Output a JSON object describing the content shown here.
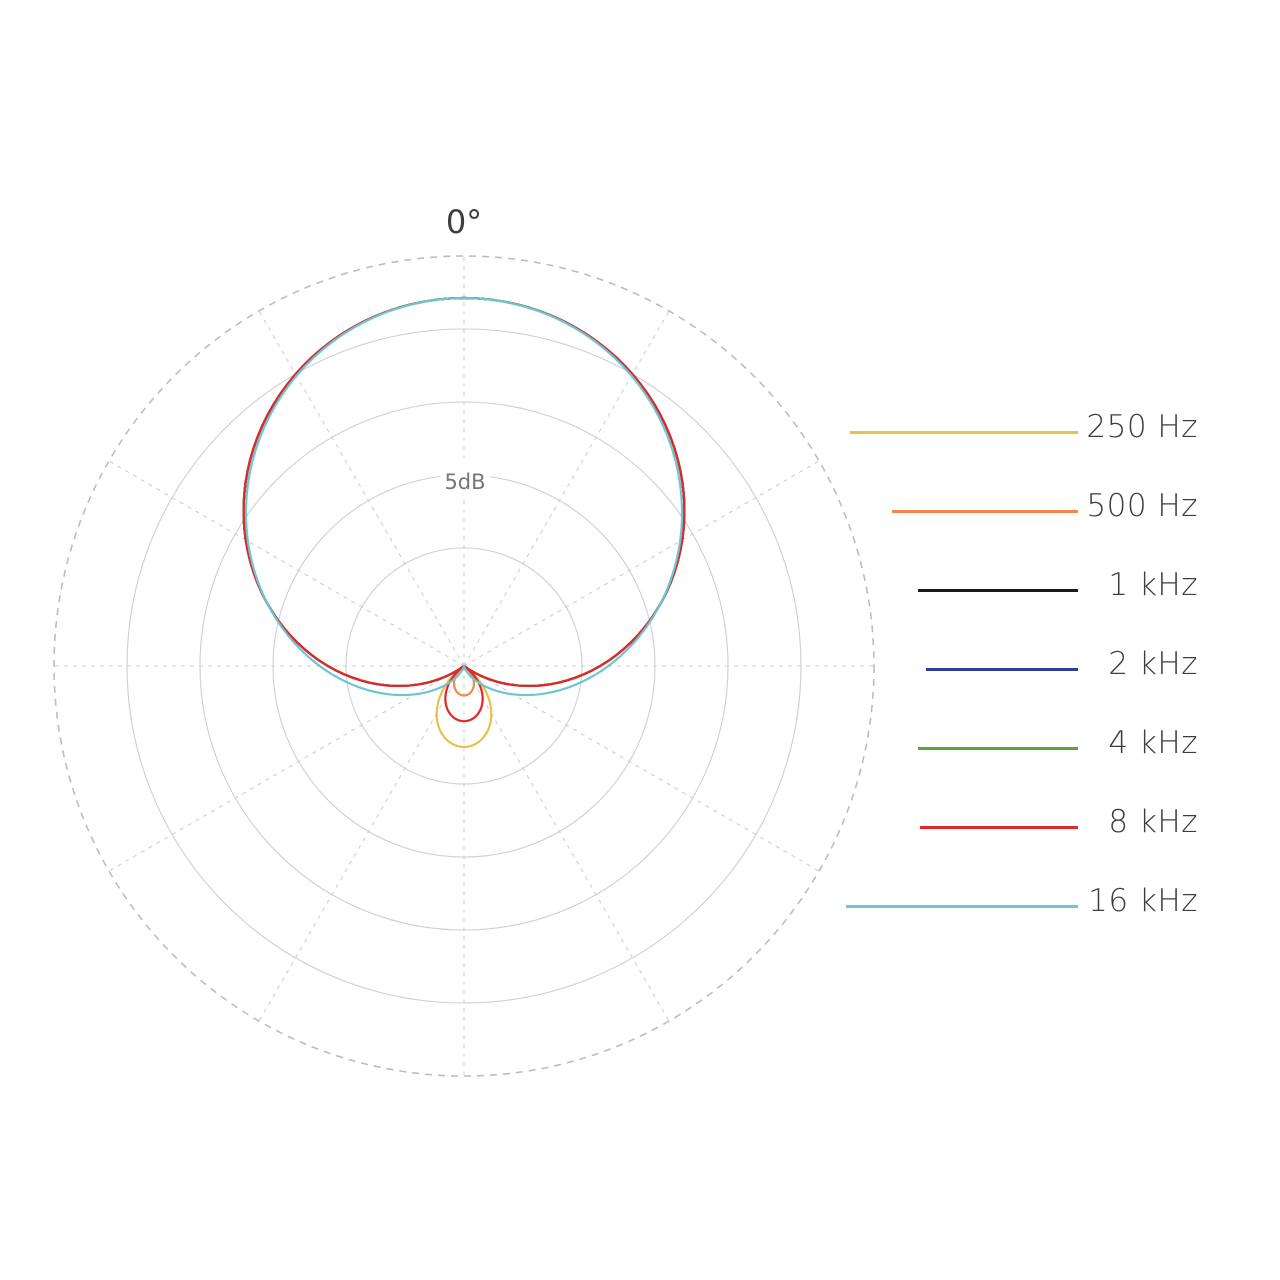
{
  "chart_data": {
    "type": "polar",
    "title": "",
    "angle_labels": [
      {
        "angle": 0,
        "text": "0°"
      }
    ],
    "ring_label": "5dB",
    "ring_step_db": 5,
    "ring_count": 5,
    "grid": true,
    "radial_divisions": 12,
    "legend_position": "right",
    "series": [
      {
        "name": "250 Hz",
        "color": "#e8c14a",
        "pattern": "supercardioid",
        "front": 1.0,
        "rear_lobe": 0.44,
        "null_angle": 150
      },
      {
        "name": "500 Hz",
        "color": "#f0894b",
        "pattern": "supercardioid",
        "front": 1.0,
        "rear_lobe": 0.16,
        "null_angle": 160
      },
      {
        "name": "1 kHz",
        "color": "#1a1a1a",
        "pattern": "supercardioid",
        "front": 1.0,
        "rear_lobe": 0.0,
        "null_angle": 175
      },
      {
        "name": "2 kHz",
        "color": "#2c3f9e",
        "pattern": "supercardioid",
        "front": 1.0,
        "rear_lobe": 0.0,
        "null_angle": 175
      },
      {
        "name": "4 kHz",
        "color": "#5ba63a",
        "pattern": "supercardioid",
        "front": 1.0,
        "rear_lobe": 0.0,
        "null_angle": 175
      },
      {
        "name": "8 kHz",
        "color": "#e3262a",
        "pattern": "supercardioid",
        "front": 1.0,
        "rear_lobe": 0.3,
        "null_angle": 155
      },
      {
        "name": "16 kHz",
        "color": "#6cc6d3",
        "pattern": "cardioid",
        "front": 1.0,
        "rear_lobe": 0.0,
        "null_angle": 180
      }
    ]
  }
}
